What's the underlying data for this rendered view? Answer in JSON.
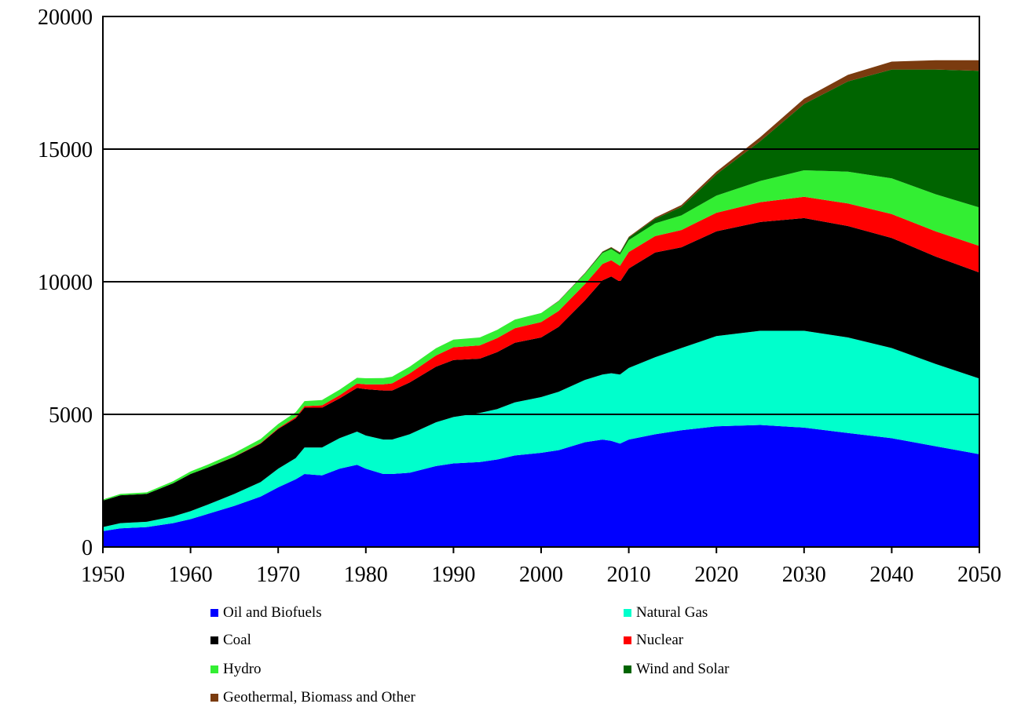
{
  "chart_data": {
    "type": "area",
    "stacked": true,
    "x": [
      1950,
      1952,
      1955,
      1958,
      1960,
      1962,
      1965,
      1968,
      1970,
      1972,
      1973,
      1975,
      1977,
      1979,
      1980,
      1982,
      1983,
      1985,
      1988,
      1990,
      1993,
      1995,
      1997,
      2000,
      2002,
      2005,
      2007,
      2008,
      2009,
      2010,
      2013,
      2016,
      2020,
      2025,
      2030,
      2035,
      2040,
      2045,
      2050
    ],
    "series": [
      {
        "name": "Oil and Biofuels",
        "color": "#0000ff",
        "values": [
          600,
          700,
          750,
          900,
          1050,
          1250,
          1550,
          1900,
          2250,
          2550,
          2750,
          2700,
          2950,
          3100,
          2950,
          2750,
          2750,
          2800,
          3050,
          3150,
          3200,
          3300,
          3450,
          3550,
          3650,
          3950,
          4050,
          4000,
          3900,
          4050,
          4250,
          4400,
          4550,
          4600,
          4500,
          4300,
          4100,
          3800,
          3500
        ]
      },
      {
        "name": "Natural Gas",
        "color": "#00ffcc",
        "values": [
          150,
          200,
          200,
          250,
          300,
          350,
          450,
          550,
          700,
          800,
          1000,
          1050,
          1150,
          1250,
          1250,
          1300,
          1300,
          1450,
          1650,
          1750,
          1850,
          1900,
          2000,
          2100,
          2200,
          2350,
          2450,
          2550,
          2600,
          2700,
          2900,
          3100,
          3400,
          3550,
          3650,
          3600,
          3400,
          3100,
          2850
        ]
      },
      {
        "name": "Coal",
        "color": "#000000",
        "values": [
          1000,
          1050,
          1050,
          1250,
          1400,
          1400,
          1400,
          1450,
          1500,
          1500,
          1500,
          1500,
          1500,
          1650,
          1750,
          1850,
          1850,
          1950,
          2100,
          2150,
          2050,
          2150,
          2250,
          2250,
          2450,
          3000,
          3550,
          3650,
          3500,
          3750,
          3950,
          3800,
          3950,
          4100,
          4250,
          4200,
          4150,
          4050,
          4000
        ]
      },
      {
        "name": "Nuclear",
        "color": "#ff0000",
        "values": [
          0,
          0,
          0,
          0,
          0,
          0,
          10,
          20,
          30,
          50,
          60,
          90,
          120,
          160,
          180,
          230,
          270,
          340,
          420,
          480,
          500,
          530,
          550,
          580,
          600,
          610,
          620,
          610,
          600,
          620,
          620,
          650,
          700,
          750,
          800,
          850,
          900,
          950,
          1000
        ]
      },
      {
        "name": "Hydro",
        "color": "#33ee33",
        "values": [
          40,
          50,
          60,
          80,
          100,
          110,
          130,
          150,
          160,
          180,
          190,
          200,
          210,
          220,
          230,
          240,
          250,
          260,
          270,
          290,
          300,
          310,
          320,
          340,
          360,
          390,
          410,
          420,
          420,
          450,
          480,
          550,
          650,
          800,
          1000,
          1200,
          1350,
          1400,
          1450
        ]
      },
      {
        "name": "Wind and Solar",
        "color": "#006400",
        "values": [
          0,
          0,
          0,
          0,
          0,
          0,
          0,
          0,
          0,
          0,
          0,
          0,
          0,
          0,
          0,
          0,
          0,
          0,
          0,
          0,
          0,
          0,
          0,
          0,
          10,
          20,
          40,
          50,
          60,
          90,
          170,
          320,
          800,
          1500,
          2500,
          3400,
          4100,
          4700,
          5150
        ]
      },
      {
        "name": "Geothermal, Biomass and Other",
        "color": "#7a3b0f",
        "values": [
          0,
          0,
          0,
          0,
          0,
          0,
          0,
          0,
          0,
          0,
          0,
          0,
          0,
          0,
          0,
          0,
          0,
          0,
          0,
          0,
          0,
          0,
          0,
          0,
          10,
          15,
          20,
          25,
          30,
          35,
          50,
          70,
          100,
          150,
          200,
          250,
          300,
          350,
          400
        ]
      }
    ],
    "xlim": [
      1950,
      2050
    ],
    "ylim": [
      0,
      20000
    ],
    "x_ticks": [
      "1950",
      "1960",
      "1970",
      "1980",
      "1990",
      "2000",
      "2010",
      "2020",
      "2030",
      "2040",
      "2050"
    ],
    "y_ticks": [
      "0",
      "5000",
      "10000",
      "15000",
      "20000"
    ],
    "grid": "horizontal",
    "legend_position": "bottom"
  }
}
